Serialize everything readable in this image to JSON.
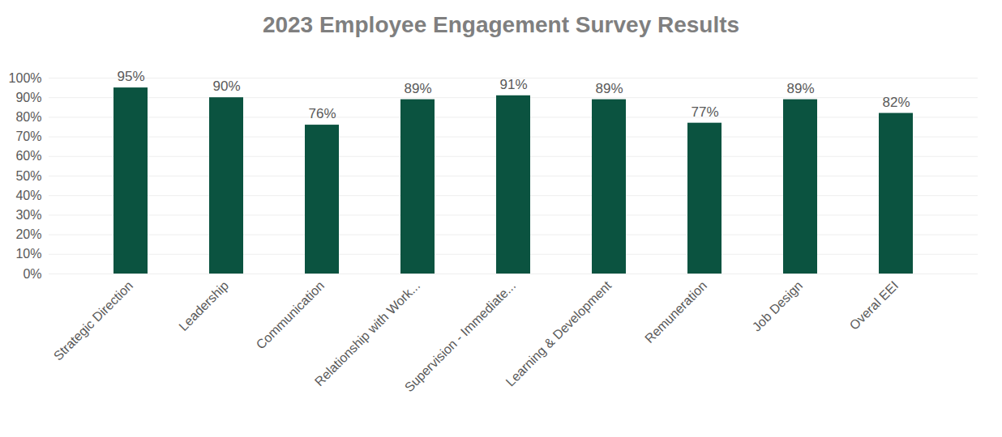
{
  "chart_data": {
    "type": "bar",
    "title": "2023 Employee Engagement Survey Results",
    "categories": [
      "Strategic Direction",
      "Leadership",
      "Communication",
      "Relationship with Work...",
      "Supervision - Immediate...",
      "Learning & Development",
      "Remuneration",
      "Job Design",
      "Overal EEI"
    ],
    "values": [
      95,
      90,
      76,
      89,
      91,
      89,
      77,
      89,
      82
    ],
    "value_labels": [
      "95%",
      "90%",
      "76%",
      "89%",
      "91%",
      "89%",
      "77%",
      "89%",
      "82%"
    ],
    "color": "#0b5340",
    "ylim": [
      0,
      100
    ],
    "yticks": [
      {
        "value": 0,
        "label": "0%"
      },
      {
        "value": 10,
        "label": "10%"
      },
      {
        "value": 20,
        "label": "20%"
      },
      {
        "value": 30,
        "label": "30%"
      },
      {
        "value": 40,
        "label": "40%"
      },
      {
        "value": 50,
        "label": "50%"
      },
      {
        "value": 60,
        "label": "60%"
      },
      {
        "value": 70,
        "label": "70%"
      },
      {
        "value": 80,
        "label": "80%"
      },
      {
        "value": 90,
        "label": "90%"
      },
      {
        "value": 100,
        "label": "100%"
      }
    ],
    "grid": true,
    "data_labels": true
  }
}
